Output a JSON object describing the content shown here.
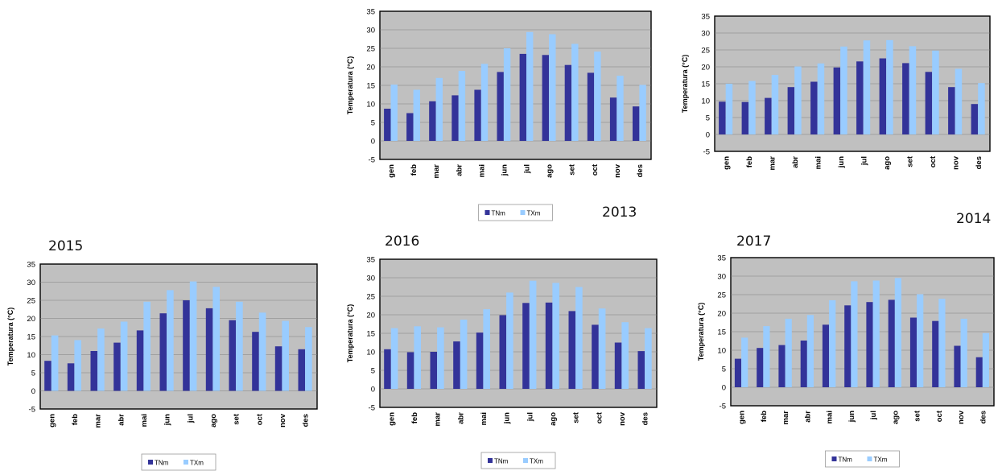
{
  "colors": {
    "tnm": "#333399",
    "txm": "#99ccff",
    "plot_bg": "#c0c0c0"
  },
  "chart_data": [
    {
      "type": "bar",
      "year": "2013",
      "categories": [
        "gen",
        "feb",
        "mar",
        "abr",
        "mai",
        "jun",
        "jul",
        "ago",
        "set",
        "oct",
        "nov",
        "des"
      ],
      "ylabel": "Temperatura (°C)",
      "ylim": [
        -5,
        35
      ],
      "yticks": [
        -5,
        0,
        5,
        10,
        15,
        20,
        25,
        30,
        35
      ],
      "series": [
        {
          "name": "TNm",
          "values": [
            8.7,
            7.5,
            10.7,
            12.3,
            13.8,
            18.6,
            23.5,
            23.2,
            20.5,
            18.4,
            11.7,
            9.3
          ]
        },
        {
          "name": "TXm",
          "values": [
            15.2,
            13.8,
            17.0,
            18.9,
            20.8,
            25.0,
            29.4,
            28.8,
            26.2,
            24.1,
            17.6,
            15.1
          ]
        }
      ]
    },
    {
      "type": "bar",
      "year": "2014",
      "categories": [
        "gen",
        "feb",
        "mar",
        "abr",
        "mai",
        "jun",
        "jul",
        "ago",
        "set",
        "oct",
        "nov",
        "des"
      ],
      "ylabel": "Temperatura (°C)",
      "ylim": [
        -5,
        35
      ],
      "yticks": [
        -5,
        0,
        5,
        10,
        15,
        20,
        25,
        30,
        35
      ],
      "series": [
        {
          "name": "TNm",
          "values": [
            9.7,
            9.6,
            10.8,
            14.0,
            15.6,
            19.8,
            21.6,
            22.5,
            21.1,
            18.5,
            14.0,
            9.0
          ]
        },
        {
          "name": "TXm",
          "values": [
            15.0,
            15.8,
            17.6,
            20.1,
            21.0,
            26.0,
            27.8,
            27.9,
            26.1,
            24.8,
            19.4,
            15.2
          ]
        }
      ]
    },
    {
      "type": "bar",
      "year": "2015",
      "categories": [
        "gen",
        "feb",
        "mar",
        "abr",
        "mai",
        "jun",
        "jul",
        "ago",
        "set",
        "oct",
        "nov",
        "des"
      ],
      "ylabel": "Temperatura (°C)",
      "ylim": [
        -5,
        35
      ],
      "yticks": [
        -5,
        0,
        5,
        10,
        15,
        20,
        25,
        30,
        35
      ],
      "series": [
        {
          "name": "TNm",
          "values": [
            8.3,
            7.6,
            11.0,
            13.3,
            16.7,
            21.4,
            25.0,
            22.8,
            19.5,
            16.3,
            12.3,
            11.5
          ]
        },
        {
          "name": "TXm",
          "values": [
            15.3,
            14.0,
            17.2,
            19.1,
            24.6,
            27.8,
            30.2,
            28.7,
            24.6,
            21.6,
            19.3,
            17.6
          ]
        }
      ]
    },
    {
      "type": "bar",
      "year": "2016",
      "categories": [
        "gen",
        "feb",
        "mar",
        "abr",
        "mai",
        "jun",
        "jul",
        "ago",
        "set",
        "oct",
        "nov",
        "des"
      ],
      "ylabel": "Temperatura (°C)",
      "ylim": [
        -5,
        35
      ],
      "yticks": [
        -5,
        0,
        5,
        10,
        15,
        20,
        25,
        30,
        35
      ],
      "series": [
        {
          "name": "TNm",
          "values": [
            10.7,
            9.9,
            10.0,
            12.8,
            15.2,
            19.9,
            23.2,
            23.3,
            21.0,
            17.3,
            12.5,
            10.2
          ]
        },
        {
          "name": "TXm",
          "values": [
            16.4,
            16.9,
            16.6,
            18.7,
            21.5,
            26.0,
            29.2,
            28.6,
            27.5,
            21.7,
            18.0,
            16.4
          ]
        }
      ]
    },
    {
      "type": "bar",
      "year": "2017",
      "categories": [
        "gen",
        "feb",
        "mar",
        "abr",
        "mai",
        "jun",
        "jul",
        "ago",
        "set",
        "oct",
        "nov",
        "des"
      ],
      "ylabel": "Temperatura (°C)",
      "ylim": [
        -5,
        35
      ],
      "yticks": [
        -5,
        0,
        5,
        10,
        15,
        20,
        25,
        30,
        35
      ],
      "series": [
        {
          "name": "TNm",
          "values": [
            7.7,
            10.6,
            11.4,
            12.6,
            16.9,
            22.1,
            23.0,
            23.6,
            18.8,
            17.9,
            11.2,
            8.1
          ]
        },
        {
          "name": "TXm",
          "values": [
            13.4,
            16.5,
            18.5,
            19.5,
            23.5,
            28.6,
            28.8,
            29.5,
            25.1,
            23.9,
            18.5,
            14.6
          ]
        }
      ]
    }
  ]
}
